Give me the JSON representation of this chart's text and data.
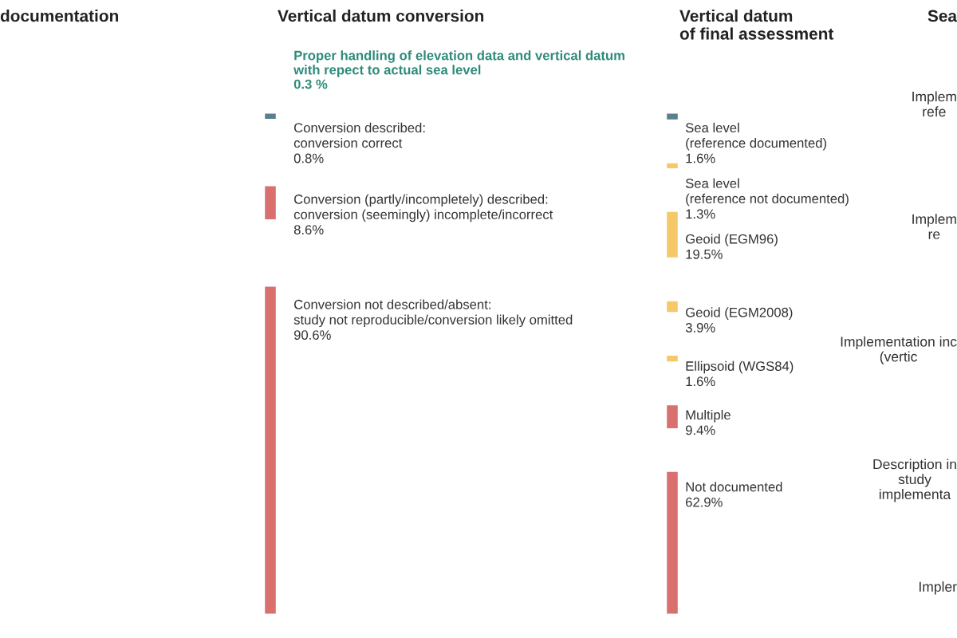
{
  "chart_data": [
    {
      "type": "other",
      "title": "documentation"
    },
    {
      "type": "other",
      "title": "Vertical datum conversion",
      "categories": [
        "Conversion described:\nconversion correct",
        "Conversion (partly/incompletely) described:\nconversion (seemingly) incomplete/incorrect",
        "Conversion not described/absent:\nstudy not reproducible/conversion likely omitted"
      ],
      "values": [
        0.8,
        8.6,
        90.6
      ],
      "value_labels": [
        "0.8%",
        "8.6%",
        "90.6%"
      ],
      "colors": [
        "#5b7f8f",
        "#d9706f",
        "#d9706f"
      ],
      "annotations": [
        "Proper handling of elevation data and vertical datum\nwith repect to actual sea level\n0.3 %"
      ]
    },
    {
      "type": "other",
      "title": "Vertical datum\nof final assessment",
      "categories": [
        "Sea level\n(reference documented)",
        "Sea level\n(reference not documented)",
        "Geoid (EGM96)",
        "Geoid (EGM2008)",
        "Ellipsoid (WGS84)",
        "Multiple",
        "Not documented"
      ],
      "values": [
        1.6,
        1.3,
        19.5,
        3.9,
        1.6,
        9.4,
        62.9
      ],
      "value_labels": [
        "1.6%",
        "1.3%",
        "19.5%",
        "3.9%",
        "1.6%",
        "9.4%",
        "62.9%"
      ],
      "colors": [
        "#5b7f8f",
        "#f5c96a",
        "#f5c96a",
        "#f5c96a",
        "#f5c96a",
        "#d9706f",
        "#d9706f"
      ]
    },
    {
      "type": "other",
      "title": "Sea",
      "annotations": [
        "Implem\nrefe",
        "Implem\nre",
        "Implementation inc\n(vertic",
        "Description in\nstudy\nimplementa",
        "Impler"
      ]
    }
  ]
}
